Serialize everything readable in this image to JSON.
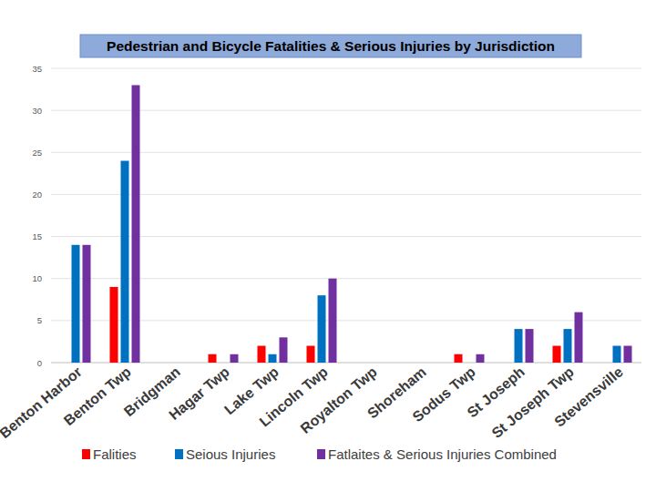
{
  "chart_data": {
    "type": "bar",
    "title": "Pedestrian and Bicycle Fatalities & Serious Injuries by Jurisdiction",
    "categories": [
      "Benton Harbor",
      "Benton Twp",
      "Bridgman",
      "Hagar Twp",
      "Lake Twp",
      "Lincoln Twp",
      "Royalton Twp",
      "Shoreham",
      "Sodus Twp",
      "St Joseph",
      "St Joseph Twp",
      "Stevensville"
    ],
    "series": [
      {
        "name": "Falities",
        "color": "#ff0000",
        "values": [
          0,
          9,
          0,
          1,
          2,
          2,
          0,
          0,
          1,
          0,
          2,
          0
        ]
      },
      {
        "name": "Seious Injuries",
        "color": "#0070c0",
        "values": [
          14,
          24,
          0,
          0,
          1,
          8,
          0,
          0,
          0,
          4,
          4,
          2
        ]
      },
      {
        "name": "Fatlaites & Serious Injuries Combined",
        "color": "#7030a0",
        "values": [
          14,
          33,
          0,
          1,
          3,
          10,
          0,
          0,
          1,
          4,
          6,
          2
        ]
      }
    ],
    "ylim": [
      0,
      35
    ],
    "yticks": [
      0,
      5,
      10,
      15,
      20,
      25,
      30,
      35
    ],
    "grid": true,
    "legend": "bottom"
  }
}
